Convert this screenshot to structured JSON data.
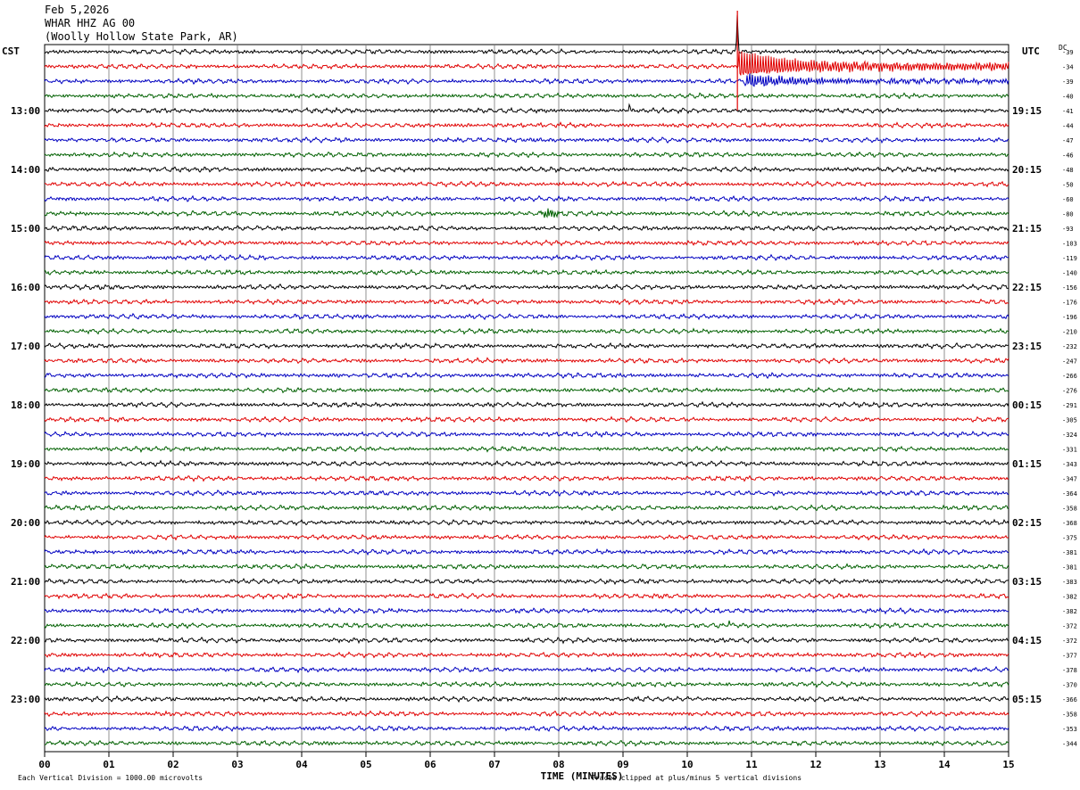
{
  "header": {
    "date": "Feb 5,2026",
    "station": "WHAR HHZ AG 00",
    "location": "(Woolly Hollow State Park, AR)"
  },
  "left_tz": "CST",
  "right_tz": "UTC",
  "dc_label": "DC",
  "footer": {
    "scale": "Each Vertical Division = 1000.00 microvolts",
    "clip": "Traces clipped at plus/minus 5 vertical divisions"
  },
  "chart_data": {
    "type": "line",
    "title": "",
    "xlabel": "TIME (MINUTES)",
    "ylabel": "",
    "xlim": [
      0,
      15
    ],
    "x_ticks": [
      "00",
      "01",
      "02",
      "03",
      "04",
      "05",
      "06",
      "07",
      "08",
      "09",
      "10",
      "11",
      "12",
      "13",
      "14",
      "15"
    ],
    "left_hour_labels": [
      "13:00",
      "14:00",
      "15:00",
      "16:00",
      "17:00",
      "18:00",
      "19:00",
      "20:00",
      "21:00",
      "22:00",
      "23:00"
    ],
    "right_hour_labels": [
      "19:15",
      "20:15",
      "21:15",
      "22:15",
      "23:15",
      "00:15",
      "01:15",
      "02:15",
      "03:15",
      "04:15",
      "05:15"
    ],
    "trace_colors": [
      "#000000",
      "#e00000",
      "#0000c0",
      "#006000"
    ],
    "dc_offsets": [
      "-39",
      "-34",
      "-39",
      "-40",
      "-41",
      "-44",
      "-47",
      "-46",
      "-48",
      "-50",
      "-60",
      "-80",
      "-93",
      "-103",
      "-119",
      "-140",
      "-156",
      "-176",
      "-196",
      "-210",
      "-232",
      "-247",
      "-266",
      "-276",
      "-291",
      "-305",
      "-324",
      "-331",
      "-343",
      "-347",
      "-364",
      "-358",
      "-368",
      "-375",
      "-381",
      "-381",
      "-383",
      "-382",
      "-382",
      "-372",
      "-372",
      "-377",
      "-378",
      "-370",
      "-366",
      "-358",
      "-353",
      "-344"
    ],
    "events": [
      {
        "trace_index": 0,
        "start_minute": 10.78,
        "description": "large spike, clipped"
      },
      {
        "trace_index": 1,
        "start_minute": 10.8,
        "description": "earthquake coda, high amplitude"
      },
      {
        "trace_index": 2,
        "start_minute": 10.9,
        "description": "earthquake coda, moderate"
      },
      {
        "trace_index": 4,
        "start_minute": 9.1,
        "description": "small spike"
      },
      {
        "trace_index": 11,
        "start_minute": 7.7,
        "description": "small burst"
      },
      {
        "trace_index": 39,
        "start_minute": 10.65,
        "description": "small spike"
      }
    ]
  }
}
